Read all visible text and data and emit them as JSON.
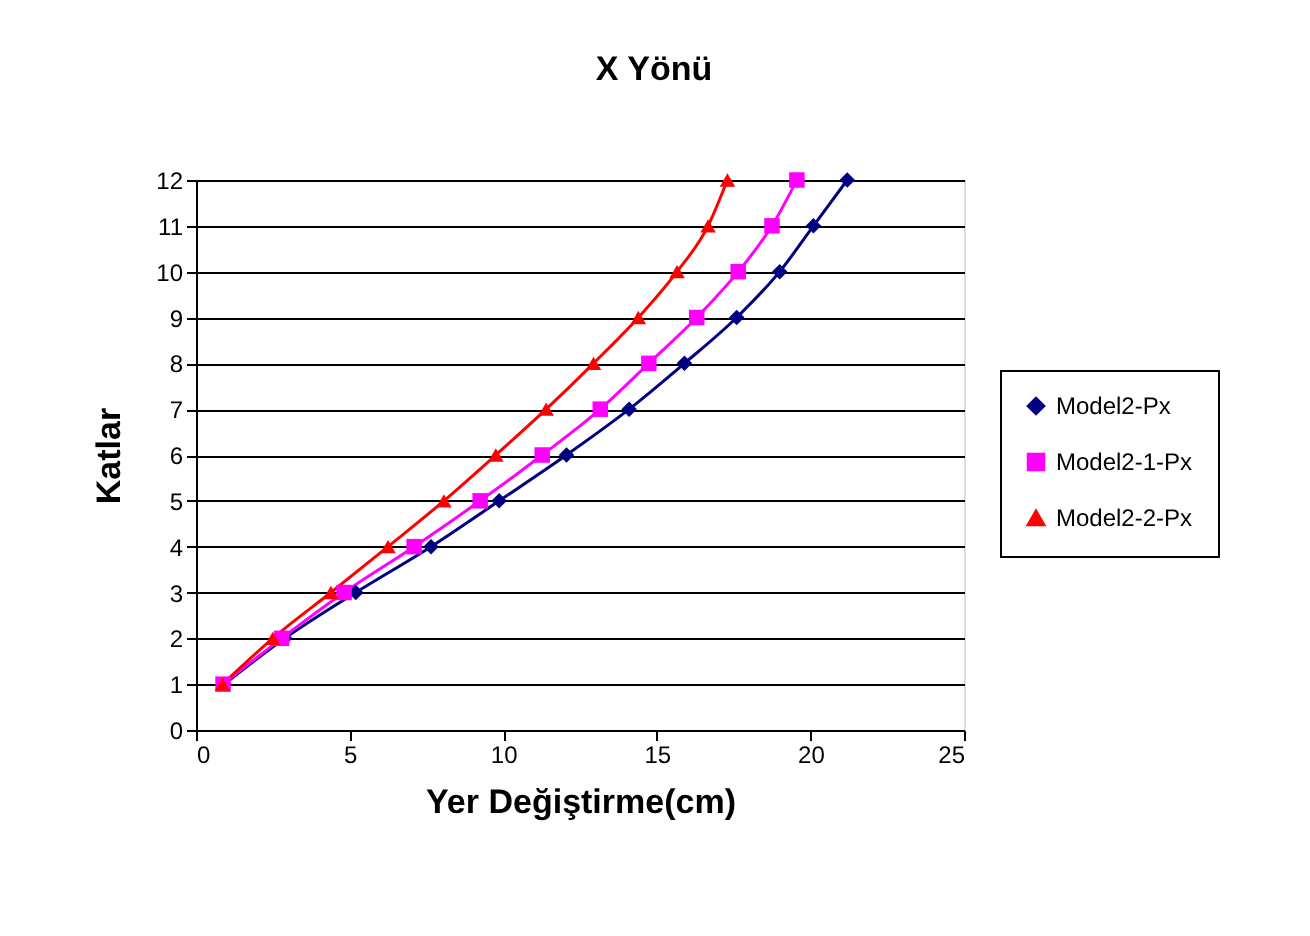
{
  "chart_data": {
    "type": "line",
    "title": "X Yönü",
    "xlabel": "Yer Değiştirme(cm)",
    "ylabel": "Katlar",
    "xlim": [
      0,
      25
    ],
    "xticks": [
      0,
      5,
      10,
      15,
      20,
      25
    ],
    "ylim": [
      0,
      12
    ],
    "yticks": [
      0,
      1,
      2,
      3,
      4,
      5,
      6,
      7,
      8,
      9,
      10,
      11,
      12
    ],
    "grid": "y",
    "legend": "right",
    "line_style": "solid",
    "series": [
      {
        "name": "Model2-Px",
        "color": "#000080",
        "marker": "diamond",
        "x": [
          0.92,
          2.89,
          5.2,
          7.65,
          9.87,
          12.06,
          14.1,
          15.9,
          17.6,
          19.0,
          20.1,
          21.2
        ],
        "values": [
          1,
          2,
          3,
          4,
          5,
          6,
          7,
          8,
          9,
          10,
          11,
          12
        ]
      },
      {
        "name": "Model2-1-Px",
        "color": "#ff00ff",
        "marker": "square",
        "x": [
          0.88,
          2.79,
          4.82,
          7.1,
          9.25,
          11.27,
          13.16,
          14.74,
          16.3,
          17.65,
          18.75,
          19.56
        ],
        "values": [
          1,
          2,
          3,
          4,
          5,
          6,
          7,
          8,
          9,
          10,
          11,
          12
        ]
      },
      {
        "name": "Model2-2-Px",
        "color": "#ff0000",
        "marker": "triangle",
        "x": [
          0.86,
          2.5,
          4.39,
          6.25,
          8.07,
          9.76,
          11.4,
          12.94,
          14.4,
          15.66,
          16.67,
          17.3
        ],
        "values": [
          1,
          2,
          3,
          4,
          5,
          6,
          7,
          8,
          9,
          10,
          11,
          12
        ]
      }
    ]
  }
}
